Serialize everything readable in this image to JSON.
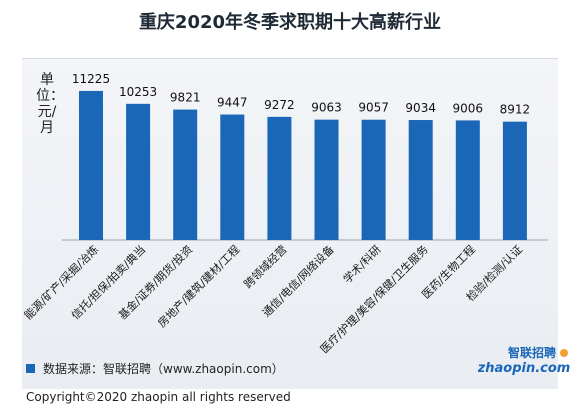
{
  "title": "重庆2020年冬季求职期十大高薪行业",
  "ylabel": "单位：元/月",
  "legend_label": "数据来源：智联招聘（www.zhaopin.com）",
  "copyright": "Copyright©2020 zhaopin all rights reserved",
  "logo": {
    "text_cn": "智联招聘",
    "text_en": "zhaopin.com"
  },
  "colors": {
    "bar": "#1a66b7"
  },
  "chart_data": {
    "type": "bar",
    "title": "重庆2020年冬季求职期十大高薪行业",
    "ylabel": "单位：元/月",
    "categories": [
      "能源/矿产/采掘/冶炼",
      "信托/担保/拍卖/典当",
      "基金/证券/期货/投资",
      "房地产/建筑/建材/工程",
      "跨领域经营",
      "通信/电信/网络设备",
      "学术/科研",
      "医疗/护理/美容/保健/卫生服务",
      "医药/生物工程",
      "检验/检测/认证"
    ],
    "values": [
      11225,
      10253,
      9821,
      9447,
      9272,
      9063,
      9057,
      9034,
      9006,
      8912
    ],
    "ylim": [
      0,
      12500
    ],
    "grid": false,
    "legend": "bottom-left"
  }
}
